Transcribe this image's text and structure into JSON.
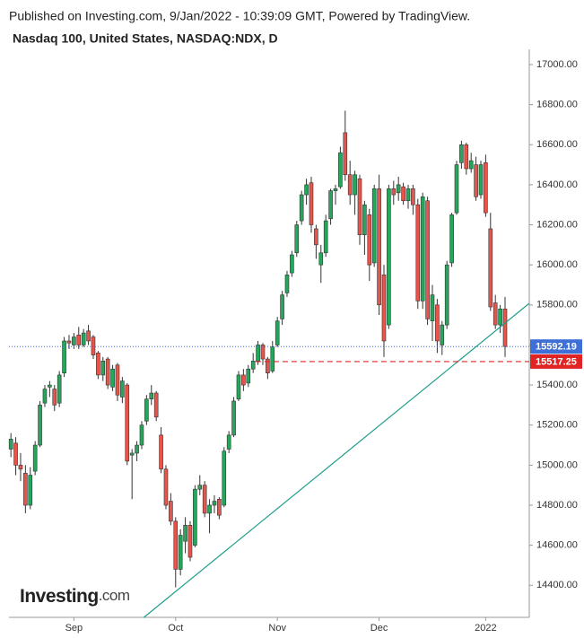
{
  "header": {
    "published": "Published on Investing.com, 9/Jan/2022 - 10:39:09 GMT, Powered by TradingView.",
    "instrument": "Nasdaq 100, United States, NASDAQ:NDX, D"
  },
  "logo": {
    "name": "Investing",
    "suffix": ".com"
  },
  "chart_data": {
    "type": "candlestick",
    "up_color": "#26a65b",
    "down_color": "#e8534a",
    "wick_color": "#333333",
    "categories": [
      null,
      null,
      null,
      null,
      null,
      null,
      null,
      null,
      null,
      null,
      null,
      null,
      null,
      null,
      null,
      null,
      null,
      null,
      null,
      null,
      null,
      null,
      null,
      null,
      null,
      null,
      null,
      null,
      null,
      null,
      null,
      null,
      null,
      null,
      null,
      null,
      null,
      null,
      null,
      null,
      null,
      null,
      null,
      null,
      null,
      null,
      null,
      null,
      null,
      null,
      null,
      null,
      null,
      null,
      null,
      null,
      null,
      null,
      null,
      null,
      null,
      null,
      null,
      null,
      null,
      null,
      null,
      null,
      null,
      null,
      null,
      null,
      null,
      null,
      null,
      null,
      null,
      null,
      null,
      null,
      null,
      null,
      null,
      null,
      null,
      null,
      null,
      null,
      null,
      null,
      null,
      null,
      null,
      null,
      null,
      null,
      null,
      null,
      null,
      null,
      null,
      null,
      null
    ],
    "candles": [
      [
        15080,
        15160,
        15040,
        15130
      ],
      [
        15110,
        15140,
        14950,
        15000
      ],
      [
        15000,
        15060,
        14920,
        14980
      ],
      [
        14960,
        15000,
        14760,
        14800
      ],
      [
        14800,
        14990,
        14780,
        14950
      ],
      [
        14970,
        15120,
        14950,
        15100
      ],
      [
        15100,
        15320,
        15090,
        15300
      ],
      [
        15310,
        15400,
        15290,
        15380
      ],
      [
        15390,
        15420,
        15340,
        15400
      ],
      [
        15380,
        15400,
        15270,
        15300
      ],
      [
        15310,
        15470,
        15290,
        15450
      ],
      [
        15460,
        15640,
        15440,
        15620
      ],
      [
        15620,
        15650,
        15580,
        15610
      ],
      [
        15600,
        15660,
        15580,
        15640
      ],
      [
        15650,
        15690,
        15580,
        15600
      ],
      [
        15600,
        15680,
        15590,
        15660
      ],
      [
        15670,
        15700,
        15600,
        15620
      ],
      [
        15640,
        15650,
        15530,
        15550
      ],
      [
        15560,
        15570,
        15430,
        15450
      ],
      [
        15450,
        15540,
        15420,
        15520
      ],
      [
        15530,
        15540,
        15380,
        15400
      ],
      [
        15390,
        15500,
        15370,
        15480
      ],
      [
        15500,
        15510,
        15320,
        15350
      ],
      [
        15340,
        15440,
        15310,
        15420
      ],
      [
        15400,
        15410,
        15000,
        15020
      ],
      [
        15050,
        15080,
        14830,
        15060
      ],
      [
        15060,
        15120,
        15020,
        15100
      ],
      [
        15100,
        15220,
        15080,
        15200
      ],
      [
        15220,
        15350,
        15200,
        15330
      ],
      [
        15330,
        15400,
        15300,
        15360
      ],
      [
        15360,
        15370,
        15220,
        15240
      ],
      [
        15150,
        15190,
        14960,
        14980
      ],
      [
        14980,
        15000,
        14780,
        14800
      ],
      [
        14820,
        14860,
        14700,
        14720
      ],
      [
        14720,
        14740,
        14390,
        14480
      ],
      [
        14480,
        14680,
        14450,
        14650
      ],
      [
        14620,
        14740,
        14560,
        14700
      ],
      [
        14700,
        14720,
        14520,
        14540
      ],
      [
        14600,
        14900,
        14590,
        14880
      ],
      [
        14880,
        14950,
        14850,
        14900
      ],
      [
        14900,
        14920,
        14740,
        14760
      ],
      [
        14760,
        14830,
        14660,
        14800
      ],
      [
        14800,
        14850,
        14760,
        14820
      ],
      [
        14830,
        14840,
        14730,
        14750
      ],
      [
        14800,
        15090,
        14790,
        15070
      ],
      [
        15080,
        15170,
        15060,
        15150
      ],
      [
        15150,
        15340,
        15140,
        15320
      ],
      [
        15330,
        15470,
        15320,
        15450
      ],
      [
        15450,
        15480,
        15370,
        15400
      ],
      [
        15410,
        15500,
        15390,
        15480
      ],
      [
        15480,
        15560,
        15460,
        15520
      ],
      [
        15520,
        15620,
        15500,
        15600
      ],
      [
        15600,
        15610,
        15500,
        15530
      ],
      [
        15530,
        15540,
        15430,
        15460
      ],
      [
        15470,
        15620,
        15460,
        15590
      ],
      [
        15600,
        15740,
        15590,
        15720
      ],
      [
        15730,
        15870,
        15700,
        15850
      ],
      [
        15860,
        15970,
        15840,
        15950
      ],
      [
        15960,
        16070,
        15940,
        16050
      ],
      [
        16060,
        16220,
        16040,
        16200
      ],
      [
        16220,
        16370,
        16200,
        16350
      ],
      [
        16350,
        16430,
        16300,
        16400
      ],
      [
        16410,
        16440,
        16160,
        16200
      ],
      [
        16180,
        16200,
        16030,
        16100
      ],
      [
        16000,
        16100,
        15910,
        16060
      ],
      [
        16060,
        16250,
        16040,
        16220
      ],
      [
        16230,
        16380,
        16200,
        16370
      ],
      [
        16370,
        16400,
        16300,
        16380
      ],
      [
        16390,
        16590,
        16380,
        16560
      ],
      [
        16660,
        16770,
        16420,
        16450
      ],
      [
        16450,
        16520,
        16300,
        16350
      ],
      [
        16350,
        16470,
        16250,
        16450
      ],
      [
        16430,
        16450,
        16100,
        16150
      ],
      [
        16150,
        16320,
        16050,
        16300
      ],
      [
        16250,
        16280,
        15920,
        16000
      ],
      [
        16010,
        16400,
        15990,
        16380
      ],
      [
        16380,
        16450,
        15750,
        15800
      ],
      [
        15950,
        16000,
        15540,
        15620
      ],
      [
        15700,
        16400,
        15680,
        16380
      ],
      [
        16380,
        16420,
        16300,
        16350
      ],
      [
        16360,
        16440,
        16320,
        16400
      ],
      [
        16390,
        16410,
        16300,
        16320
      ],
      [
        16320,
        16400,
        16280,
        16380
      ],
      [
        16380,
        16400,
        16250,
        16300
      ],
      [
        16300,
        16330,
        15780,
        15820
      ],
      [
        15820,
        16360,
        15780,
        16340
      ],
      [
        16320,
        16340,
        15700,
        15730
      ],
      [
        15720,
        15900,
        15620,
        15850
      ],
      [
        15800,
        15830,
        15560,
        15620
      ],
      [
        15600,
        15720,
        15550,
        15700
      ],
      [
        15700,
        16020,
        15680,
        16000
      ],
      [
        16010,
        16260,
        15990,
        16250
      ],
      [
        16260,
        16520,
        16250,
        16500
      ],
      [
        16510,
        16620,
        16480,
        16600
      ],
      [
        16600,
        16610,
        16450,
        16480
      ],
      [
        16480,
        16560,
        16460,
        16520
      ],
      [
        16500,
        16540,
        16320,
        16340
      ],
      [
        16350,
        16520,
        16330,
        16500
      ],
      [
        16510,
        16550,
        16240,
        16260
      ],
      [
        16180,
        16260,
        15770,
        15790
      ],
      [
        15810,
        15850,
        15680,
        15700
      ],
      [
        15700,
        15800,
        15660,
        15780
      ],
      [
        15780,
        15840,
        15540,
        15592.19
      ]
    ],
    "xlim": [
      -0.4,
      107
    ],
    "xticks": [
      {
        "value": 13,
        "label": "Sep"
      },
      {
        "value": 34,
        "label": "Oct"
      },
      {
        "value": 55,
        "label": "Nov"
      },
      {
        "value": 76,
        "label": "Dec"
      },
      {
        "value": 98,
        "label": "2022"
      }
    ],
    "ylim": [
      14240,
      17076
    ],
    "yticks": [
      {
        "value": 14400,
        "label": "14400.00"
      },
      {
        "value": 14600,
        "label": "14600.00"
      },
      {
        "value": 14800,
        "label": "14800.00"
      },
      {
        "value": 15000,
        "label": "15000.00"
      },
      {
        "value": 15200,
        "label": "15200.00"
      },
      {
        "value": 15400,
        "label": "15400.00"
      },
      {
        "value": 15600,
        "label": "15600.00"
      },
      {
        "value": 15800,
        "label": "15800.00"
      },
      {
        "value": 16000,
        "label": "16000.00"
      },
      {
        "value": 16200,
        "label": "16200.00"
      },
      {
        "value": 16400,
        "label": "16400.00"
      },
      {
        "value": 16600,
        "label": "16600.00"
      },
      {
        "value": 16800,
        "label": "16800.00"
      },
      {
        "value": 17000,
        "label": "17000.00"
      }
    ],
    "trendline": {
      "color": "#1f9e8a",
      "points": [
        [
          27.4,
          14239
        ],
        [
          107,
          15808
        ]
      ]
    },
    "price_lines": [
      {
        "value": 15592.19,
        "label": "15592.19",
        "color": "#3d6fd6",
        "style": "dotted"
      },
      {
        "value": 15517.25,
        "label": "15517.25",
        "color": "#e02424",
        "style": "dashed",
        "start": 50.5
      }
    ]
  }
}
